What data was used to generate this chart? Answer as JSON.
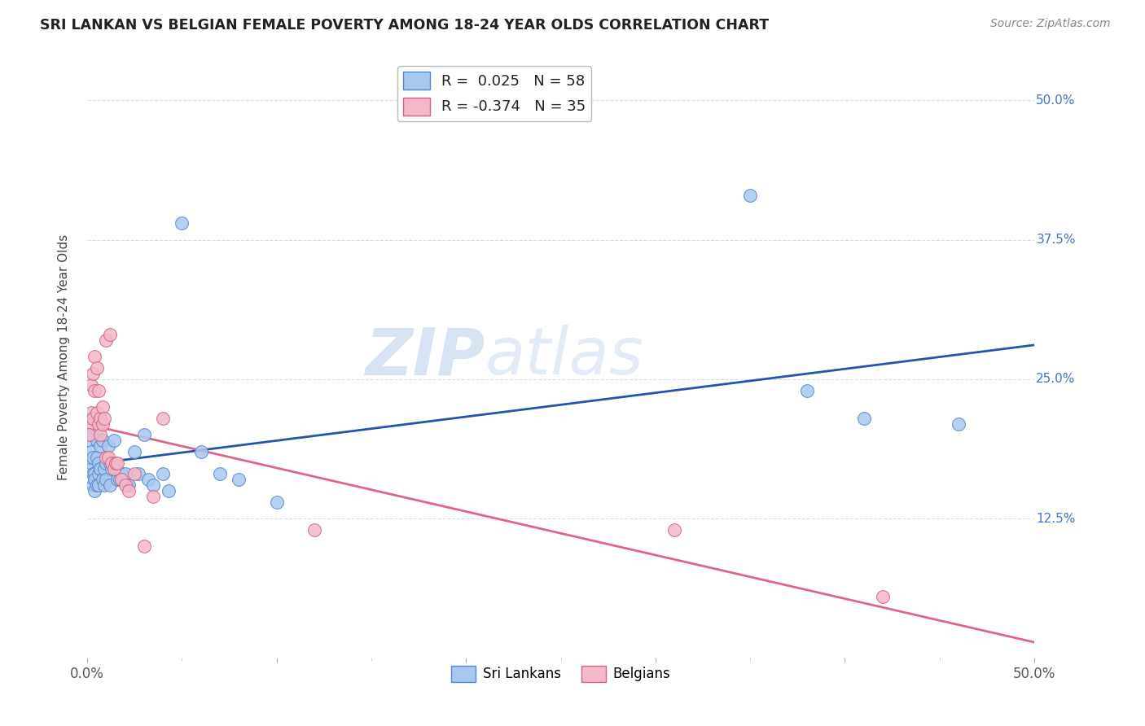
{
  "title": "SRI LANKAN VS BELGIAN FEMALE POVERTY AMONG 18-24 YEAR OLDS CORRELATION CHART",
  "source": "Source: ZipAtlas.com",
  "ylabel": "Female Poverty Among 18-24 Year Olds",
  "sri_lankan_R": 0.025,
  "sri_lankan_N": 58,
  "belgian_R": -0.374,
  "belgian_N": 35,
  "watermark_zip": "ZIP",
  "watermark_atlas": "atlas",
  "sri_lankan_color": "#a8c8f0",
  "sri_lankan_edge": "#5588cc",
  "belgian_color": "#f5b8c8",
  "belgian_edge": "#cc6688",
  "line_sri_lankan": "#2255aa",
  "line_belgian": "#dd6688",
  "sri_lankan_x": [
    0.001,
    0.001,
    0.002,
    0.002,
    0.002,
    0.002,
    0.003,
    0.003,
    0.003,
    0.003,
    0.004,
    0.004,
    0.004,
    0.004,
    0.005,
    0.005,
    0.005,
    0.005,
    0.006,
    0.006,
    0.006,
    0.007,
    0.007,
    0.007,
    0.008,
    0.008,
    0.009,
    0.009,
    0.01,
    0.01,
    0.011,
    0.012,
    0.012,
    0.013,
    0.014,
    0.015,
    0.016,
    0.017,
    0.018,
    0.02,
    0.021,
    0.022,
    0.025,
    0.027,
    0.03,
    0.032,
    0.035,
    0.04,
    0.043,
    0.05,
    0.06,
    0.07,
    0.08,
    0.1,
    0.35,
    0.38,
    0.41,
    0.46
  ],
  "sri_lankan_y": [
    0.21,
    0.195,
    0.215,
    0.2,
    0.185,
    0.175,
    0.165,
    0.18,
    0.155,
    0.2,
    0.16,
    0.165,
    0.15,
    0.16,
    0.155,
    0.18,
    0.205,
    0.195,
    0.165,
    0.175,
    0.155,
    0.17,
    0.19,
    0.17,
    0.195,
    0.16,
    0.17,
    0.155,
    0.175,
    0.16,
    0.19,
    0.155,
    0.175,
    0.17,
    0.195,
    0.17,
    0.16,
    0.16,
    0.165,
    0.165,
    0.155,
    0.155,
    0.185,
    0.165,
    0.2,
    0.16,
    0.155,
    0.165,
    0.15,
    0.39,
    0.185,
    0.165,
    0.16,
    0.14,
    0.415,
    0.24,
    0.215,
    0.21
  ],
  "belgian_x": [
    0.001,
    0.001,
    0.002,
    0.002,
    0.003,
    0.003,
    0.004,
    0.004,
    0.005,
    0.005,
    0.006,
    0.006,
    0.007,
    0.007,
    0.008,
    0.008,
    0.009,
    0.01,
    0.01,
    0.011,
    0.012,
    0.013,
    0.014,
    0.015,
    0.016,
    0.018,
    0.02,
    0.022,
    0.025,
    0.03,
    0.035,
    0.04,
    0.12,
    0.31,
    0.42
  ],
  "belgian_y": [
    0.21,
    0.2,
    0.245,
    0.22,
    0.255,
    0.215,
    0.27,
    0.24,
    0.26,
    0.22,
    0.24,
    0.21,
    0.215,
    0.2,
    0.225,
    0.21,
    0.215,
    0.285,
    0.18,
    0.18,
    0.29,
    0.175,
    0.17,
    0.175,
    0.175,
    0.16,
    0.155,
    0.15,
    0.165,
    0.1,
    0.145,
    0.215,
    0.115,
    0.115,
    0.055
  ],
  "xlim": [
    0.0,
    0.5
  ],
  "ylim": [
    0.0,
    0.54
  ],
  "yticks": [
    0.0,
    0.125,
    0.25,
    0.375,
    0.5
  ],
  "ytick_right_labels": [
    "",
    "12.5%",
    "25.0%",
    "37.5%",
    "50.0%"
  ],
  "background_color": "#ffffff",
  "grid_color": "#dddddd",
  "title_color": "#222222",
  "source_color": "#888888",
  "ylabel_color": "#444444",
  "right_label_color": "#4472c4"
}
